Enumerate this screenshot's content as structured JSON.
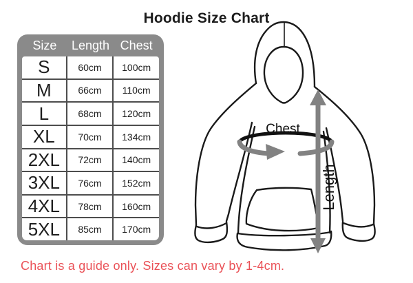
{
  "title": "Hoodie Size Chart",
  "table": {
    "headers": [
      "Size",
      "Length",
      "Chest"
    ],
    "rows": [
      [
        "S",
        "60cm",
        "100cm"
      ],
      [
        "M",
        "66cm",
        "110cm"
      ],
      [
        "L",
        "68cm",
        "120cm"
      ],
      [
        "XL",
        "70cm",
        "134cm"
      ],
      [
        "2XL",
        "72cm",
        "140cm"
      ],
      [
        "3XL",
        "76cm",
        "152cm"
      ],
      [
        "4XL",
        "78cm",
        "160cm"
      ],
      [
        "5XL",
        "85cm",
        "170cm"
      ]
    ]
  },
  "diagram": {
    "chest_label": "Chest",
    "length_label": "Length"
  },
  "footnote": "Chart is a guide only. Sizes can vary by 1-4cm.",
  "colors": {
    "table_frame_gray": "#8a8a8a",
    "grid_line_gray": "#4d4d4d",
    "arrow_gray": "#828282",
    "outline_black": "#1a1a1a",
    "note_red": "#ea5157",
    "header_text_white": "#ffffff"
  }
}
